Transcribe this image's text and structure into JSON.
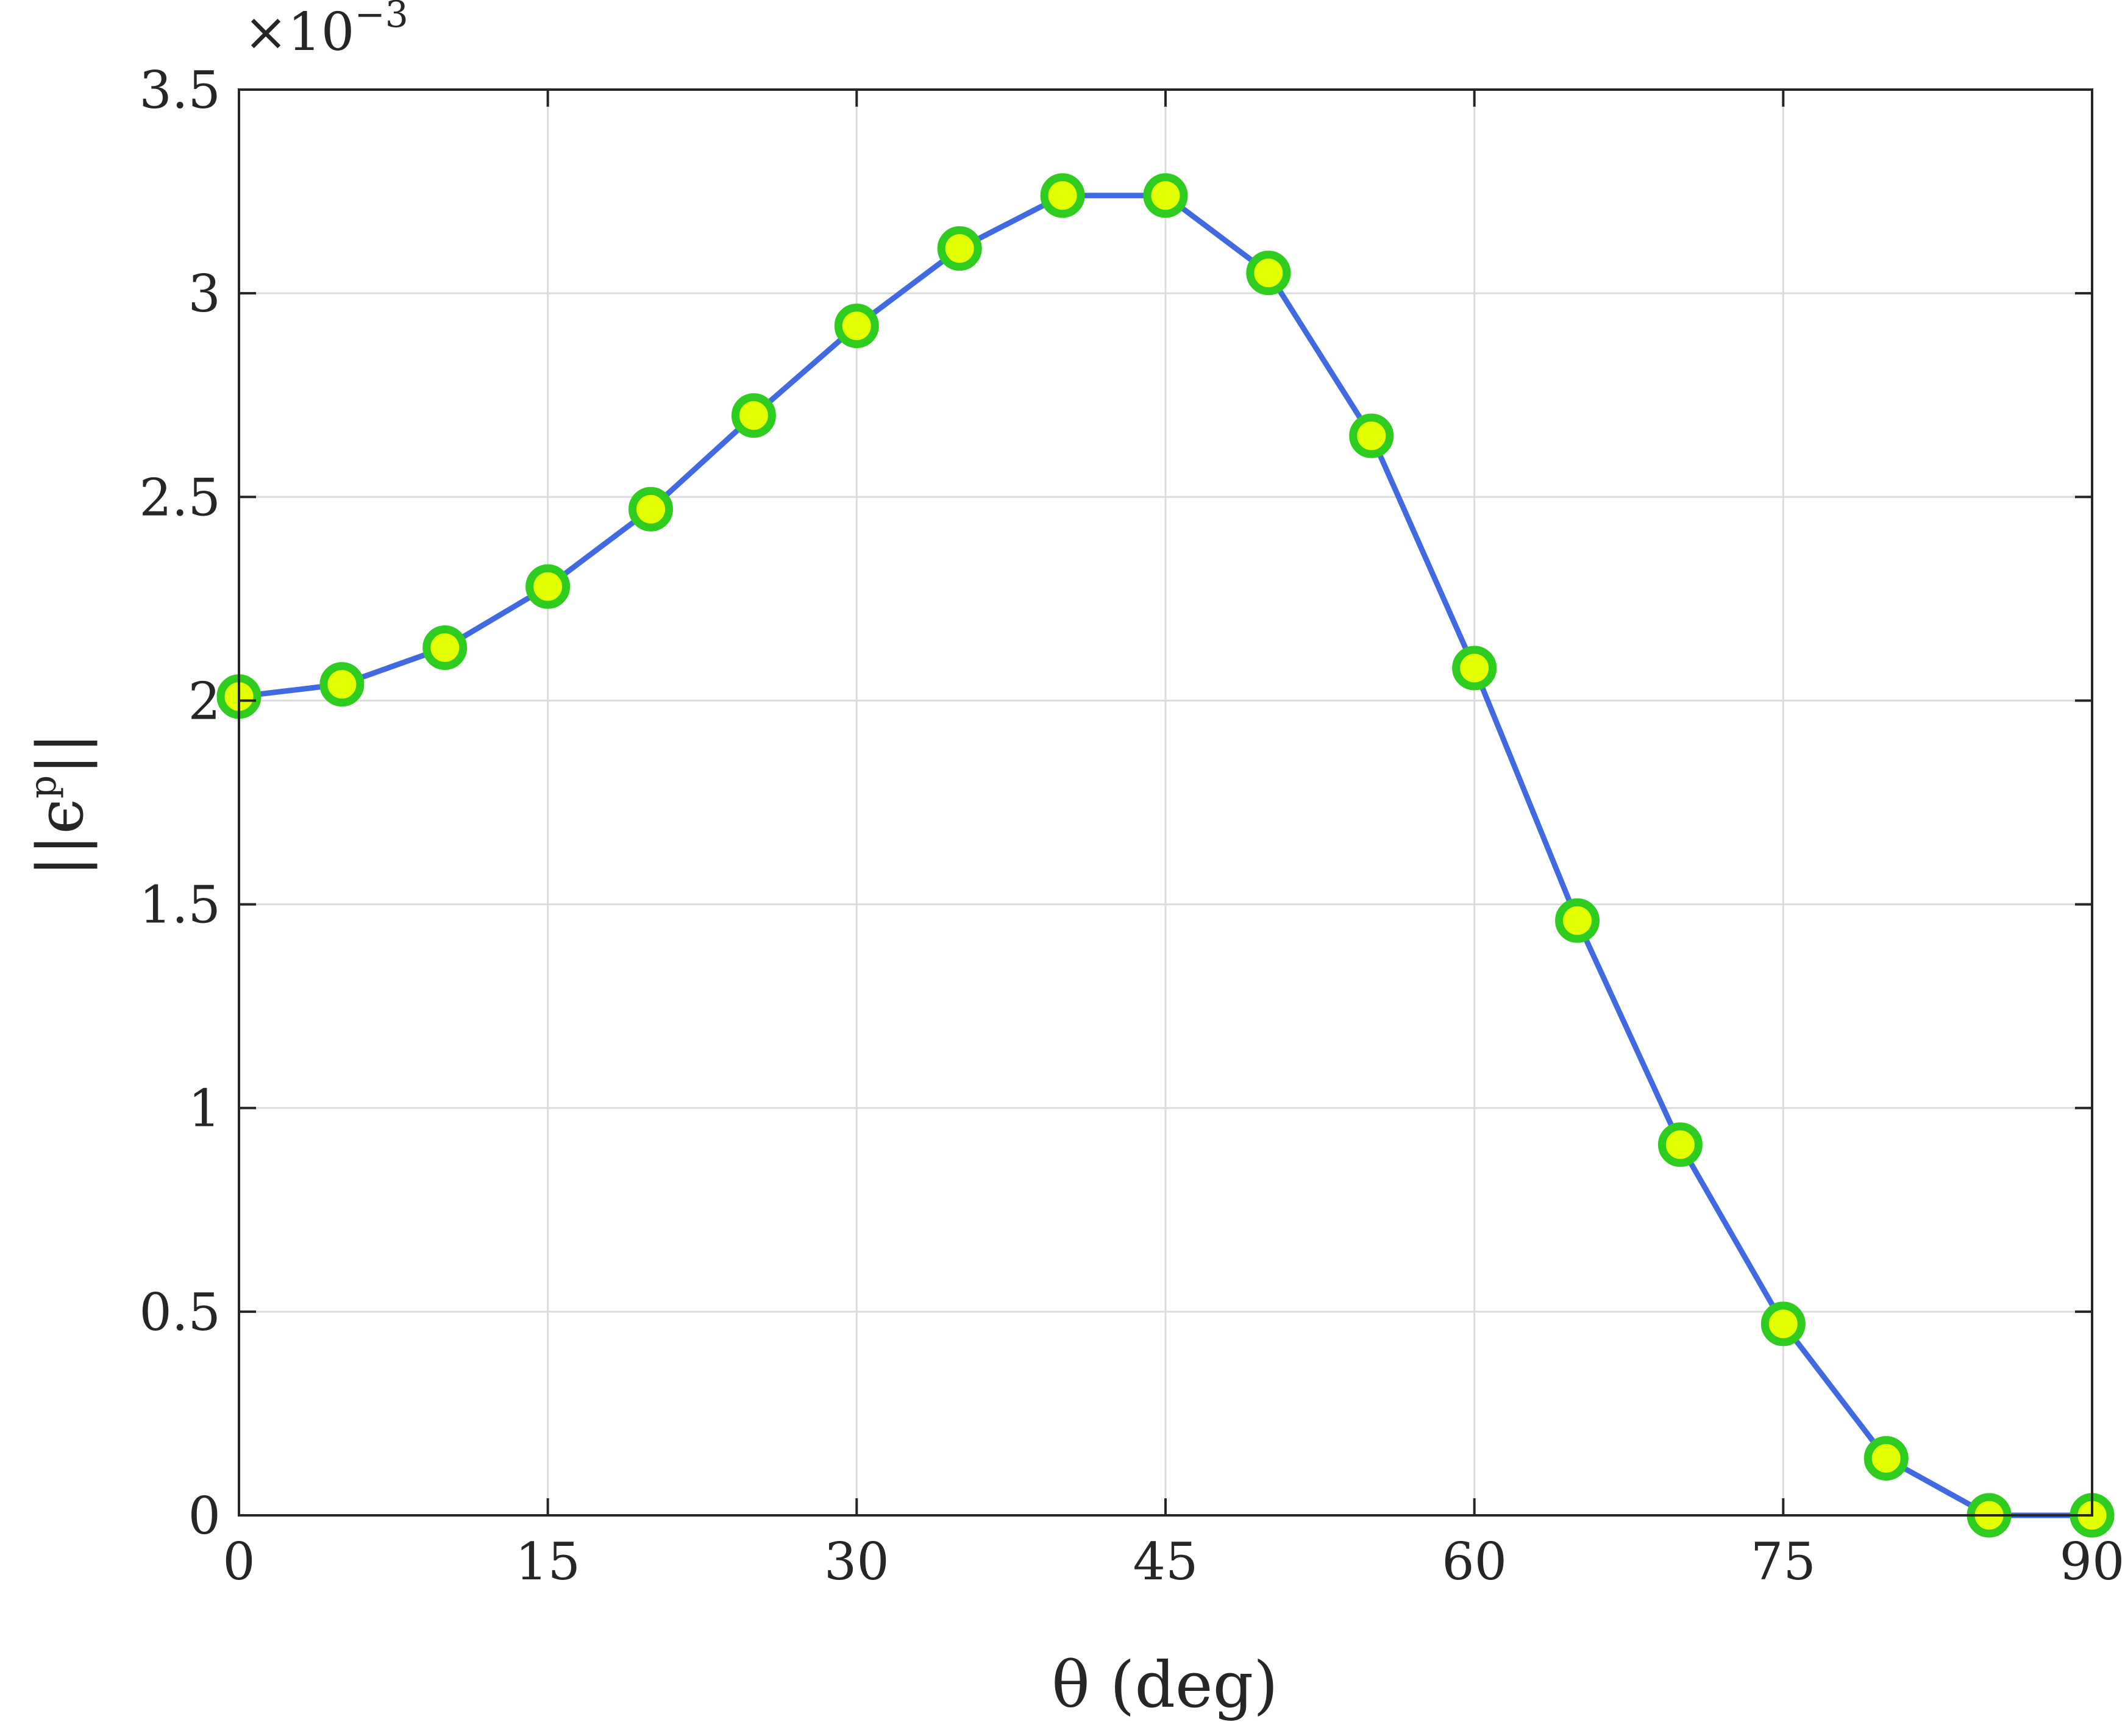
{
  "chart_data": {
    "type": "line",
    "xlabel": "θ (deg)",
    "ylabel": "||ϵp||",
    "ylabel_base": "||ϵ",
    "ylabel_sup": "p",
    "ylabel_end": "||",
    "y_multiplier_base": "×10",
    "y_multiplier_exp": "−3",
    "xlim": [
      0,
      90
    ],
    "ylim": [
      0,
      3.5
    ],
    "xticks": [
      "0",
      "15",
      "30",
      "45",
      "60",
      "75",
      "90"
    ],
    "yticks": [
      "0",
      "0.5",
      "1",
      "1.5",
      "2",
      "2.5",
      "3",
      "3.5"
    ],
    "grid": true,
    "series": [
      {
        "x": [
          0,
          5,
          10,
          15,
          20,
          25,
          30,
          35,
          40,
          45,
          50,
          55,
          60,
          65,
          70,
          75,
          80,
          85,
          90
        ],
        "values": [
          2.01,
          2.04,
          2.13,
          2.28,
          2.47,
          2.7,
          2.92,
          3.11,
          3.24,
          3.24,
          3.05,
          2.65,
          2.08,
          1.46,
          0.91,
          0.47,
          0.14,
          0.0,
          0.0
        ],
        "line_color": "#4169e1",
        "marker_fill": "#e1ff00",
        "marker_edge": "#2ecc1f"
      }
    ]
  }
}
